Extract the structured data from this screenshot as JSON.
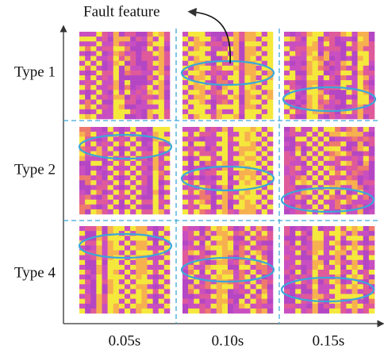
{
  "annotation": "Fault feature",
  "rows": [
    "Type 1",
    "Type 2",
    "Type 4"
  ],
  "columns": [
    "0.05s",
    "0.10s",
    "0.15s"
  ]
}
